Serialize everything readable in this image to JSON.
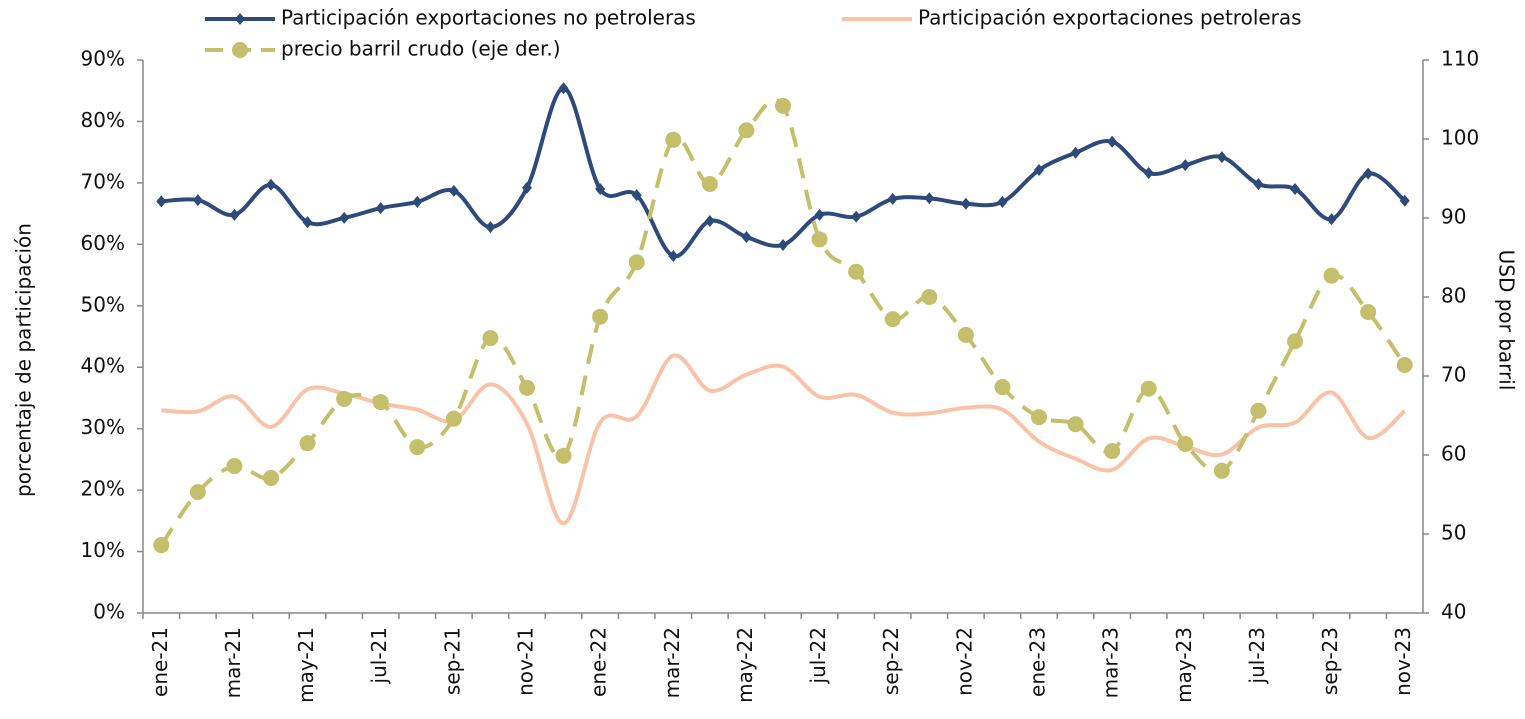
{
  "chart_data": {
    "type": "line",
    "categories": [
      "ene-21",
      null,
      "mar-21",
      null,
      "may-21",
      null,
      "jul-21",
      null,
      "sep-21",
      null,
      "nov-21",
      null,
      "ene-22",
      null,
      "mar-22",
      null,
      "may-22",
      null,
      "jul-22",
      null,
      "sep-22",
      null,
      "nov-22",
      null,
      "ene-23",
      null,
      "mar-23",
      null,
      "may-23",
      null,
      "jul-23",
      null,
      "sep-23",
      null,
      "nov-23"
    ],
    "series": [
      {
        "name": "Participación exportaciones no petroleras",
        "color": "#2e4a7a",
        "marker": "diamond",
        "values": [
          67.0,
          67.2,
          64.8,
          69.7,
          63.6,
          64.3,
          65.9,
          66.9,
          68.7,
          62.8,
          69.2,
          85.4,
          69.0,
          68.0,
          58.1,
          63.8,
          61.2,
          59.9,
          64.8,
          64.5,
          67.4,
          67.5,
          66.6,
          66.9,
          72.1,
          74.9,
          76.7,
          71.6,
          72.9,
          74.2,
          69.8,
          69.0,
          64.1,
          71.5,
          67.1
        ]
      },
      {
        "name": "Participación exportaciones petroleras",
        "color": "#f8c3a8",
        "values": [
          33.0,
          32.8,
          35.2,
          30.3,
          36.4,
          35.7,
          34.1,
          33.1,
          31.3,
          37.2,
          30.8,
          14.6,
          31.0,
          32.0,
          41.9,
          36.2,
          38.8,
          40.1,
          35.2,
          35.5,
          32.6,
          32.5,
          33.4,
          33.1,
          27.9,
          25.1,
          23.3,
          28.4,
          27.1,
          25.8,
          30.2,
          31.0,
          35.9,
          28.5,
          32.9
        ]
      },
      {
        "name": "precio barril crudo (eje der.)",
        "color": "#c3bf6a",
        "marker": "circle",
        "dashed": true,
        "axis": "y2",
        "values": [
          48.6,
          55.3,
          58.6,
          57.1,
          61.5,
          67.1,
          66.7,
          61.0,
          64.6,
          74.8,
          68.5,
          59.9,
          77.5,
          84.4,
          99.9,
          94.3,
          101.1,
          104.2,
          87.3,
          83.2,
          77.2,
          80.0,
          75.2,
          68.6,
          64.8,
          63.9,
          60.5,
          68.4,
          61.4,
          58.0,
          65.6,
          74.4,
          82.7,
          78.1,
          71.4
        ]
      }
    ],
    "y_label": "porcentaje de participación",
    "y2_label": "USD  por barril",
    "ylim": [
      0,
      90
    ],
    "yticks": [
      {
        "value": 0,
        "label": "0%"
      },
      {
        "value": 10,
        "label": "10%"
      },
      {
        "value": 20,
        "label": "20%"
      },
      {
        "value": 30,
        "label": "30%"
      },
      {
        "value": 40,
        "label": "40%"
      },
      {
        "value": 50,
        "label": "50%"
      },
      {
        "value": 60,
        "label": "60%"
      },
      {
        "value": 70,
        "label": "70%"
      },
      {
        "value": 80,
        "label": "80%"
      },
      {
        "value": 90,
        "label": "90%"
      }
    ],
    "y2lim": [
      40,
      110
    ],
    "y2ticks": [
      40,
      50,
      60,
      70,
      80,
      90,
      100,
      110
    ],
    "grid": false,
    "legend": "top",
    "smooth": true
  }
}
